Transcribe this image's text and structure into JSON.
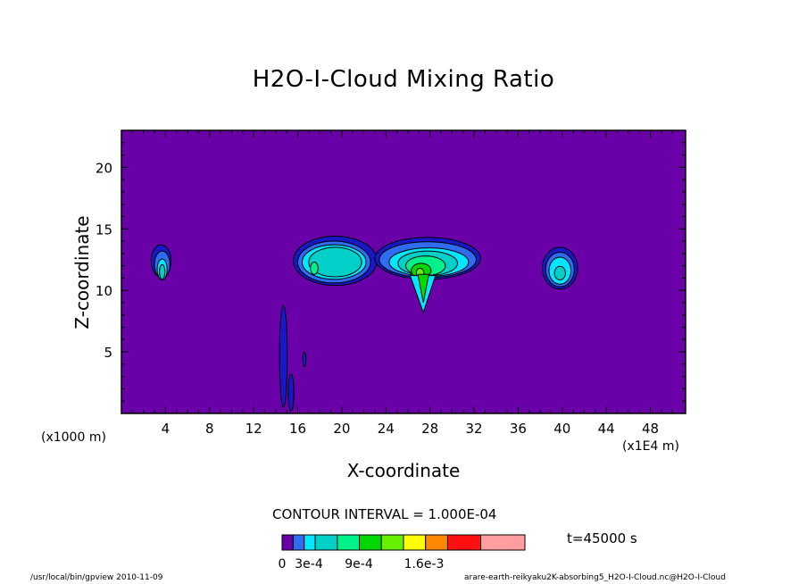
{
  "chart_data": {
    "type": "heatmap",
    "title": "H2O-I-Cloud Mixing Ratio",
    "xlabel": "X-coordinate",
    "ylabel": "Z-coordinate",
    "x_unit_left": "(x1000 m)",
    "x_unit_right": "(x1E4 m)",
    "x_ticks": [
      "4",
      "8",
      "12",
      "16",
      "20",
      "24",
      "28",
      "32",
      "36",
      "40",
      "44",
      "48"
    ],
    "y_ticks": [
      "5",
      "10",
      "15",
      "20"
    ],
    "x_tick_values": [
      4,
      8,
      12,
      16,
      20,
      24,
      28,
      32,
      36,
      40,
      44,
      48
    ],
    "y_tick_values": [
      5,
      10,
      15,
      20
    ],
    "xlim": [
      0,
      51.2
    ],
    "ylim": [
      0,
      23
    ],
    "contour_interval": "CONTOUR INTERVAL = 1.000E-04",
    "time_label": "t=45000 s",
    "background_color": "#6a00a8",
    "colorbar": {
      "colors": [
        "#6a00a8",
        "#1818c8",
        "#2f6cf2",
        "#00e8ff",
        "#00d0c8",
        "#00f08c",
        "#00d800",
        "#66f000",
        "#ffff00",
        "#ff8800",
        "#ff1010",
        "#ff9ea0"
      ],
      "labels": [
        "0",
        "3e-4",
        "9e-4",
        "1.6e-3"
      ]
    },
    "clouds": [
      {
        "center_x": 3.6,
        "center_z": 12.2,
        "max_level": 4
      },
      {
        "center_x": 19.0,
        "center_z": 12.4,
        "max_level": 5
      },
      {
        "center_x": 27.5,
        "center_z": 12.2,
        "max_level": 7
      },
      {
        "center_x": 39.8,
        "center_z": 11.8,
        "max_level": 4
      }
    ]
  },
  "footer": {
    "left": "/usr/local/bin/gpview  2010-11-09",
    "right": "arare-earth-reikyaku2K-absorbing5_H2O-I-Cloud.nc@H2O-I-Cloud"
  }
}
